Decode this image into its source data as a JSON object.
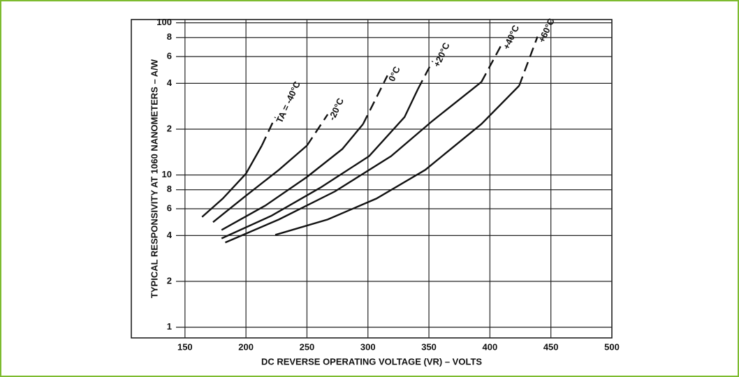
{
  "chart_data": {
    "type": "line",
    "x_label": "DC REVERSE OPERATING VOLTAGE (VR) – VOLTS",
    "y_label": "TYPICAL RESPONSIVITY AT 1060 NANOMETERS – A/W",
    "log_y": true,
    "grid": true,
    "xlim": [
      106,
      500
    ],
    "xticks": [
      150,
      200,
      250,
      300,
      350,
      400,
      450,
      500
    ],
    "ylim": [
      0.85,
      105
    ],
    "yticks": [
      1,
      2,
      4,
      6,
      8,
      10,
      {
        "value": 20,
        "label": "2"
      },
      {
        "value": 40,
        "label": "4"
      },
      {
        "value": 60,
        "label": "6"
      },
      {
        "value": 80,
        "label": "8"
      },
      100
    ],
    "series": [
      {
        "name": "TA = -40°C",
        "color": "#111111",
        "x": [
          164,
          181,
          200,
          213,
          224
        ],
        "values": [
          5.3,
          7.0,
          10.2,
          15.6,
          24
        ]
      },
      {
        "name": "-20°C",
        "color": "#111111",
        "x": [
          173,
          199,
          227,
          250,
          267
        ],
        "values": [
          4.9,
          7.2,
          10.8,
          15.6,
          25
        ]
      },
      {
        "name": "0°C",
        "color": "#111111",
        "x": [
          180,
          216,
          250,
          279,
          296,
          316
        ],
        "values": [
          4.35,
          6.3,
          9.7,
          14.8,
          21.6,
          45
        ]
      },
      {
        "name": "+20°C",
        "color": "#111111",
        "x": [
          180,
          221,
          261,
          301,
          330,
          341,
          353
        ],
        "values": [
          3.83,
          5.4,
          8.25,
          13.3,
          24,
          36.7,
          56
        ]
      },
      {
        "name": "+40°C",
        "color": "#111111",
        "x": [
          183,
          227,
          273,
          319,
          353,
          393,
          410
        ],
        "values": [
          3.6,
          5.1,
          7.8,
          13.3,
          22.7,
          40.8,
          73
        ]
      },
      {
        "name": "+60°C",
        "color": "#111111",
        "x": [
          224,
          267,
          307,
          347,
          393,
          424,
          439
        ],
        "values": [
          4.04,
          5.1,
          7.0,
          10.8,
          21.6,
          38.6,
          81
        ]
      }
    ]
  }
}
